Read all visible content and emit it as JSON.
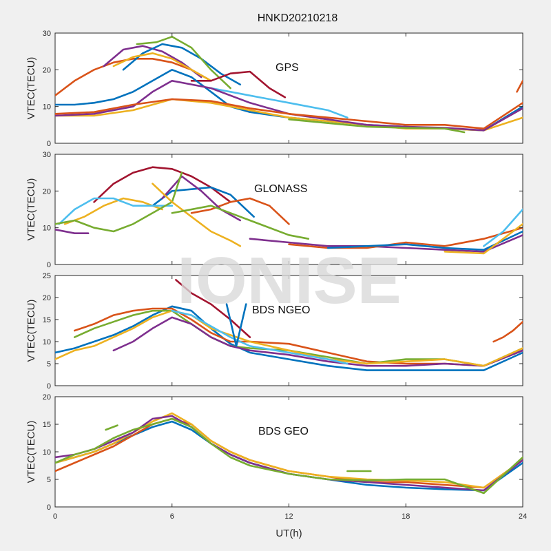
{
  "figure_title": "HNKD20210218",
  "watermark": "IONISE",
  "colors": {
    "palette": [
      "#0072BD",
      "#D95319",
      "#EDB120",
      "#7E2F8E",
      "#77AC30",
      "#4DBEEE",
      "#A2142F"
    ]
  },
  "chart_data": [
    {
      "type": "line",
      "annotation": "GPS",
      "ylabel": "VTEC(TECU)",
      "xlabel": "",
      "xlim": [
        0,
        24
      ],
      "ylim": [
        0,
        30
      ],
      "xticks": [
        0,
        6,
        12,
        18,
        24
      ],
      "yticks": [
        0,
        10,
        20,
        30
      ],
      "series": [
        {
          "color": "#D95319",
          "x": [
            0,
            1,
            2,
            3,
            4,
            5,
            6,
            7,
            8
          ],
          "y": [
            13,
            17,
            20,
            22,
            23,
            23,
            22,
            20,
            17
          ]
        },
        {
          "color": "#7E2F8E",
          "x": [
            2.5,
            3.5,
            4.5,
            5.5,
            6.5,
            7.5
          ],
          "y": [
            21,
            25.5,
            26.5,
            25,
            22,
            18
          ]
        },
        {
          "color": "#0072BD",
          "x": [
            3.5,
            4.5,
            5.5,
            6.5,
            7.5,
            8.5,
            9.5
          ],
          "y": [
            20,
            24.5,
            27,
            26,
            23,
            19,
            16
          ]
        },
        {
          "color": "#77AC30",
          "x": [
            4.2,
            5.2,
            6.0,
            7.0,
            8.0,
            9.0
          ],
          "y": [
            27,
            27.5,
            29,
            26,
            20,
            15
          ]
        },
        {
          "color": "#EDB120",
          "x": [
            3,
            4,
            5,
            6,
            7,
            8
          ],
          "y": [
            21,
            23.5,
            24.5,
            23,
            20,
            17
          ]
        },
        {
          "color": "#A2142F",
          "x": [
            7.0,
            8.0,
            9.0,
            10.0,
            11.0,
            11.8
          ],
          "y": [
            17,
            17,
            19,
            19.5,
            15,
            12.5
          ]
        },
        {
          "color": "#4DBEEE",
          "x": [
            8,
            9,
            10,
            11,
            12,
            13,
            14,
            15
          ],
          "y": [
            15,
            14,
            13,
            12,
            11,
            10,
            9,
            7
          ]
        },
        {
          "color": "#0072BD",
          "x": [
            0,
            1,
            2,
            3,
            4,
            5,
            6,
            7,
            8,
            9,
            10,
            12,
            14,
            16,
            18,
            20,
            22,
            24
          ],
          "y": [
            10.5,
            10.5,
            11,
            12,
            14,
            17,
            20,
            18,
            14,
            10,
            8.5,
            7,
            6,
            5,
            4.5,
            4,
            3.5,
            10
          ]
        },
        {
          "color": "#EDB120",
          "x": [
            0,
            2,
            4,
            6,
            8,
            10,
            12,
            14,
            16,
            18,
            20,
            22,
            24
          ],
          "y": [
            7.5,
            7.5,
            9,
            12,
            11,
            9,
            7,
            6,
            5,
            4,
            4,
            3.5,
            7
          ]
        },
        {
          "color": "#7E2F8E",
          "x": [
            0,
            2,
            4,
            5,
            6,
            8,
            10,
            12,
            14,
            16,
            18,
            20,
            22,
            24
          ],
          "y": [
            7.5,
            8,
            10,
            14,
            17,
            15,
            11,
            8,
            6.5,
            5,
            4.5,
            4.2,
            3.5,
            9.5
          ]
        },
        {
          "color": "#D95319",
          "x": [
            0,
            2,
            4,
            6,
            8,
            10,
            12,
            14,
            16,
            18,
            20,
            22,
            24
          ],
          "y": [
            8,
            8.5,
            10.5,
            12,
            11.5,
            9.5,
            8,
            7,
            6,
            5,
            5,
            4,
            11
          ]
        },
        {
          "color": "#77AC30",
          "x": [
            12,
            14,
            16,
            18,
            20,
            21
          ],
          "y": [
            6.5,
            5.5,
            4.5,
            4.2,
            4,
            3
          ]
        },
        {
          "color": "#D95319",
          "x": [
            23.7,
            24
          ],
          "y": [
            14,
            17
          ]
        }
      ]
    },
    {
      "type": "line",
      "annotation": "GLONASS",
      "ylabel": "VTEC(TECU)",
      "xlabel": "",
      "xlim": [
        0,
        24
      ],
      "ylim": [
        0,
        30
      ],
      "xticks": [
        0,
        6,
        12,
        18,
        24
      ],
      "yticks": [
        0,
        10,
        20,
        30
      ],
      "series": [
        {
          "color": "#A2142F",
          "x": [
            2,
            3,
            4,
            5,
            6,
            7,
            8,
            9
          ],
          "y": [
            17,
            22,
            25,
            26.5,
            26,
            24,
            21,
            17
          ]
        },
        {
          "color": "#0072BD",
          "x": [
            5,
            6,
            7,
            8,
            9,
            10.2
          ],
          "y": [
            16,
            20,
            20.5,
            21,
            19,
            13
          ]
        },
        {
          "color": "#D95319",
          "x": [
            7,
            8,
            9,
            10,
            11,
            12
          ],
          "y": [
            14,
            15,
            17,
            18,
            16,
            11
          ]
        },
        {
          "color": "#EDB120",
          "x": [
            0.5,
            1.5,
            2.5,
            3.5,
            4.5,
            5.5
          ],
          "y": [
            11,
            13,
            16,
            18,
            17,
            15
          ]
        },
        {
          "color": "#4DBEEE",
          "x": [
            0.2,
            1,
            2,
            3,
            4,
            5,
            6
          ],
          "y": [
            11,
            15,
            18,
            18,
            16,
            16,
            16
          ]
        },
        {
          "color": "#7E2F8E",
          "x": [
            5.5,
            6.5,
            7.5,
            8.5,
            9.5
          ],
          "y": [
            18,
            24,
            20,
            15,
            12
          ]
        },
        {
          "color": "#77AC30",
          "x": [
            0,
            1,
            2,
            3,
            4,
            5,
            6,
            6.5
          ],
          "y": [
            11,
            12,
            10,
            9,
            11,
            14,
            17,
            25
          ]
        },
        {
          "color": "#EDB120",
          "x": [
            5,
            6,
            7,
            8,
            9,
            9.5
          ],
          "y": [
            22,
            17,
            13,
            9,
            6.5,
            5
          ]
        },
        {
          "color": "#7E2F8E",
          "x": [
            0,
            1,
            1.7
          ],
          "y": [
            9.5,
            8.5,
            8.5
          ]
        },
        {
          "color": "#77AC30",
          "x": [
            6,
            8,
            10,
            12,
            13
          ],
          "y": [
            14,
            16,
            12,
            8,
            7
          ]
        },
        {
          "color": "#7E2F8E",
          "x": [
            10,
            12,
            14,
            16,
            18,
            20,
            22,
            24
          ],
          "y": [
            7,
            6,
            5,
            5,
            4.5,
            4,
            3.5,
            8
          ]
        },
        {
          "color": "#D95319",
          "x": [
            12,
            14,
            16,
            18,
            20,
            22,
            24
          ],
          "y": [
            5.5,
            4.5,
            4.5,
            6,
            5,
            7,
            10
          ]
        },
        {
          "color": "#0072BD",
          "x": [
            14,
            16,
            18,
            20,
            22,
            24
          ],
          "y": [
            4.5,
            5,
            5.5,
            4.5,
            4,
            9
          ]
        },
        {
          "color": "#4DBEEE",
          "x": [
            22,
            23,
            24
          ],
          "y": [
            5,
            9,
            15
          ]
        },
        {
          "color": "#EDB120",
          "x": [
            20,
            22,
            24
          ],
          "y": [
            3.5,
            3,
            11
          ]
        }
      ]
    },
    {
      "type": "line",
      "annotation": "BDS NGEO",
      "ylabel": "VTEC(TECU)",
      "xlabel": "",
      "xlim": [
        0,
        24
      ],
      "ylim": [
        0,
        25
      ],
      "xticks": [
        0,
        6,
        12,
        18,
        24
      ],
      "yticks": [
        0,
        5,
        10,
        15,
        20,
        25
      ],
      "series": [
        {
          "color": "#0072BD",
          "x": [
            0,
            1,
            2,
            3,
            4,
            5,
            6,
            7,
            8,
            9,
            10,
            12,
            14,
            16,
            18,
            20,
            22,
            24
          ],
          "y": [
            7.5,
            8.5,
            10,
            11.5,
            13.5,
            16,
            18,
            17,
            13,
            9.5,
            7.5,
            6,
            4.5,
            3.5,
            3.5,
            3.5,
            3.5,
            7.5
          ]
        },
        {
          "color": "#D95319",
          "x": [
            1,
            2,
            3,
            4,
            5,
            6,
            7,
            8,
            9,
            10,
            12,
            14,
            16,
            18,
            20,
            22,
            24
          ],
          "y": [
            12.5,
            14,
            16,
            17,
            17.5,
            17.5,
            15,
            12,
            10,
            10,
            9.5,
            7.5,
            5.5,
            5,
            5,
            4.5,
            8
          ]
        },
        {
          "color": "#77AC30",
          "x": [
            1,
            2,
            3,
            4,
            5,
            6,
            7,
            8,
            9,
            10,
            12,
            14,
            16,
            18,
            20,
            22,
            24
          ],
          "y": [
            11,
            13,
            14.5,
            16,
            17,
            17,
            14,
            11,
            9,
            8.5,
            8,
            6.5,
            5,
            6,
            6,
            4.5,
            8.5
          ]
        },
        {
          "color": "#7E2F8E",
          "x": [
            3,
            4,
            5,
            6,
            7,
            8,
            9,
            10,
            12,
            14,
            16,
            18,
            20,
            22,
            24
          ],
          "y": [
            8,
            10,
            13,
            15.5,
            14,
            11,
            9,
            8,
            7,
            5.5,
            4.5,
            4.5,
            5,
            4.5,
            8
          ]
        },
        {
          "color": "#EDB120",
          "x": [
            0,
            1,
            2,
            3,
            4,
            5,
            6,
            7,
            8,
            10,
            12,
            14,
            16,
            18,
            20,
            22,
            24
          ],
          "y": [
            6,
            8,
            9,
            11,
            13,
            15.5,
            17,
            16,
            13,
            10,
            8,
            6,
            5,
            5.5,
            6,
            4.5,
            8.5
          ]
        },
        {
          "color": "#4DBEEE",
          "x": [
            6,
            7,
            8,
            9,
            10,
            12,
            14,
            15
          ],
          "y": [
            17,
            16,
            13.5,
            11,
            9,
            7.5,
            6,
            5
          ]
        },
        {
          "color": "#A2142F",
          "x": [
            6.2,
            7,
            8,
            9,
            10
          ],
          "y": [
            24,
            21,
            18.5,
            15,
            11
          ]
        },
        {
          "color": "#0072BD",
          "x": [
            8.8,
            9.3,
            9.8
          ],
          "y": [
            18.5,
            9,
            18.5
          ]
        },
        {
          "color": "#D95319",
          "x": [
            22.5,
            23,
            23.5,
            24
          ],
          "y": [
            10,
            11,
            12.5,
            14.5
          ]
        }
      ]
    },
    {
      "type": "line",
      "annotation": "BDS GEO",
      "ylabel": "VTEC(TECU)",
      "xlabel": "UT(h)",
      "xlim": [
        0,
        24
      ],
      "ylim": [
        0,
        20
      ],
      "xticks": [
        0,
        6,
        12,
        18,
        24
      ],
      "xticklabels": [
        "0",
        "6",
        "12",
        "18",
        "24"
      ],
      "yticks": [
        0,
        5,
        10,
        15,
        20
      ],
      "series": [
        {
          "color": "#0072BD",
          "x": [
            0,
            1,
            2,
            3,
            4,
            5,
            6,
            7,
            8,
            9,
            10,
            12,
            14,
            16,
            18,
            20,
            22,
            24
          ],
          "y": [
            8,
            9,
            10,
            11.5,
            13,
            14.5,
            15.5,
            14,
            11.5,
            9.5,
            8,
            6,
            5,
            4,
            3.5,
            3.2,
            3,
            8
          ]
        },
        {
          "color": "#D95319",
          "x": [
            0,
            1,
            2,
            3,
            4,
            5,
            6,
            7,
            8,
            9,
            10,
            12,
            14,
            16,
            18,
            20,
            22,
            24
          ],
          "y": [
            6.5,
            8,
            9.5,
            11,
            13,
            15,
            16,
            15,
            12,
            10,
            8.5,
            6.5,
            5.5,
            4.5,
            4.5,
            4,
            3.5,
            8.5
          ]
        },
        {
          "color": "#EDB120",
          "x": [
            0,
            1,
            2,
            3,
            4,
            5,
            6,
            7,
            8,
            9,
            10,
            12,
            14,
            16,
            18,
            20,
            22,
            24
          ],
          "y": [
            8,
            9,
            10,
            11.5,
            13.5,
            15.5,
            17,
            15,
            12,
            10,
            8.5,
            6.5,
            5.5,
            5,
            4.8,
            4.5,
            3.5,
            8.5
          ]
        },
        {
          "color": "#7E2F8E",
          "x": [
            0,
            1,
            2,
            3,
            4,
            5,
            6,
            7,
            8,
            9,
            10,
            12,
            14,
            16,
            18,
            20,
            22,
            24
          ],
          "y": [
            9,
            9.5,
            10.5,
            12,
            13.5,
            16,
            16.5,
            14.5,
            11.5,
            9.5,
            8,
            6,
            5,
            4.5,
            4,
            3.5,
            3,
            8.5
          ]
        },
        {
          "color": "#77AC30",
          "x": [
            0,
            1,
            2,
            3,
            4,
            5,
            6,
            7,
            8,
            9,
            10,
            12,
            14,
            16,
            18,
            20,
            22,
            24
          ],
          "y": [
            8,
            9.5,
            10.5,
            12.5,
            14,
            15,
            16,
            14.5,
            11.5,
            9,
            7.5,
            6,
            5,
            4.8,
            5,
            5,
            2.5,
            9
          ]
        },
        {
          "color": "#77AC30",
          "x": [
            2.6,
            3.2
          ],
          "y": [
            14,
            14.8
          ]
        },
        {
          "color": "#77AC30",
          "x": [
            15,
            16.2
          ],
          "y": [
            6.5,
            6.5
          ]
        }
      ]
    }
  ]
}
